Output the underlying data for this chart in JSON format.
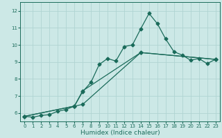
{
  "title": "",
  "xlabel": "Humidex (Indice chaleur)",
  "xlim": [
    -0.5,
    23.5
  ],
  "ylim": [
    5.5,
    12.5
  ],
  "yticks": [
    6,
    7,
    8,
    9,
    10,
    11,
    12
  ],
  "xticks": [
    0,
    1,
    2,
    3,
    4,
    5,
    6,
    7,
    8,
    9,
    10,
    11,
    12,
    13,
    14,
    15,
    16,
    17,
    18,
    19,
    20,
    21,
    22,
    23
  ],
  "background_color": "#cce8e6",
  "grid_color": "#b0d4d2",
  "line_color": "#1a6b5a",
  "series1_x": [
    0,
    1,
    2,
    3,
    4,
    5,
    6,
    7,
    8,
    9,
    10,
    11,
    12,
    13,
    14,
    15,
    16,
    17,
    18,
    19,
    20,
    21,
    22,
    23
  ],
  "series1_y": [
    5.8,
    5.75,
    5.85,
    5.9,
    6.1,
    6.2,
    6.4,
    7.25,
    7.8,
    8.85,
    9.2,
    9.05,
    9.9,
    10.0,
    10.95,
    11.85,
    11.25,
    10.35,
    9.6,
    9.4,
    9.1,
    9.2,
    8.9,
    9.15
  ],
  "series2_x": [
    0,
    6,
    7,
    14,
    23
  ],
  "series2_y": [
    5.8,
    6.4,
    7.3,
    9.55,
    9.15
  ],
  "series3_x": [
    0,
    6,
    7,
    14,
    23
  ],
  "series3_y": [
    5.8,
    6.4,
    6.5,
    9.55,
    9.15
  ],
  "marker_size": 2.5,
  "line_width": 0.9,
  "tick_fontsize": 5.0,
  "xlabel_fontsize": 6.5
}
